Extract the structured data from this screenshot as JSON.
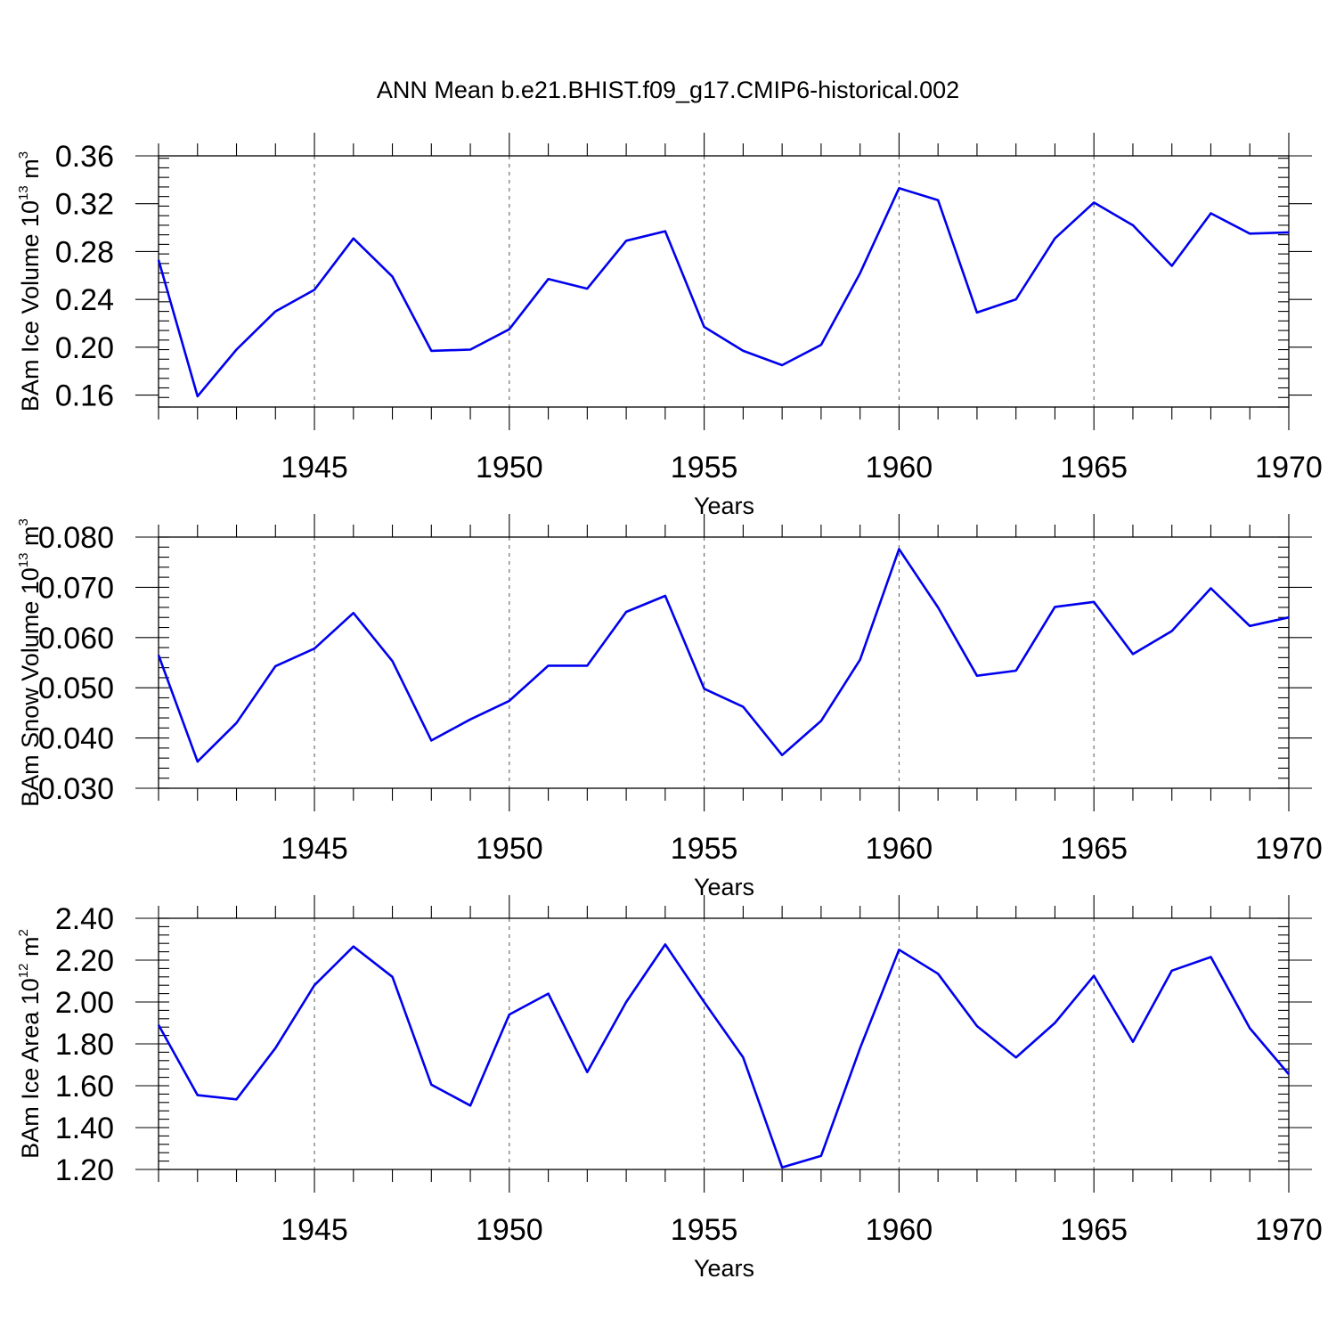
{
  "figure": {
    "title": "ANN Mean b.e21.BHIST.f09_g17.CMIP6-historical.002"
  },
  "chart_data": [
    {
      "type": "line",
      "ylabel": {
        "text": "BAm Ice Volume 10",
        "exponent": "13",
        "unit": " m",
        "unit_exponent": "3"
      },
      "xlabel": "Years",
      "xlim": [
        1941,
        1970
      ],
      "ylim": [
        0.15,
        0.36
      ],
      "xticks": [
        1945,
        1950,
        1955,
        1960,
        1965,
        1970
      ],
      "xtick_labels": [
        "1945",
        "1950",
        "1955",
        "1960",
        "1965",
        "1970"
      ],
      "yticks": [
        0.16,
        0.2,
        0.24,
        0.28,
        0.32,
        0.36
      ],
      "ytick_labels": [
        "0.16",
        "0.20",
        "0.24",
        "0.28",
        "0.32",
        "0.36"
      ],
      "y_minor_step": 0.008,
      "grid": "dashed vertical at major x ticks",
      "color": "#0000ee",
      "x": [
        1941,
        1942,
        1943,
        1944,
        1945,
        1946,
        1947,
        1948,
        1949,
        1950,
        1951,
        1952,
        1953,
        1954,
        1955,
        1956,
        1957,
        1958,
        1959,
        1960,
        1961,
        1962,
        1963,
        1964,
        1965,
        1966,
        1967,
        1968,
        1969,
        1970
      ],
      "values": [
        0.273,
        0.159,
        0.198,
        0.23,
        0.248,
        0.291,
        0.259,
        0.197,
        0.198,
        0.215,
        0.257,
        0.249,
        0.289,
        0.297,
        0.217,
        0.197,
        0.185,
        0.202,
        0.262,
        0.333,
        0.323,
        0.229,
        0.24,
        0.291,
        0.321,
        0.302,
        0.268,
        0.312,
        0.295,
        0.296
      ]
    },
    {
      "type": "line",
      "ylabel": {
        "text": "BAm Snow Volume 10",
        "exponent": "13",
        "unit": " m",
        "unit_exponent": "3"
      },
      "xlabel": "Years",
      "xlim": [
        1941,
        1970
      ],
      "ylim": [
        0.03,
        0.08
      ],
      "xticks": [
        1945,
        1950,
        1955,
        1960,
        1965,
        1970
      ],
      "xtick_labels": [
        "1945",
        "1950",
        "1955",
        "1960",
        "1965",
        "1970"
      ],
      "yticks": [
        0.03,
        0.04,
        0.05,
        0.06,
        0.07,
        0.08
      ],
      "ytick_labels": [
        "0.030",
        "0.040",
        "0.050",
        "0.060",
        "0.070",
        "0.080"
      ],
      "y_minor_step": 0.002,
      "grid": "dashed vertical at major x ticks",
      "color": "#0000ee",
      "x": [
        1941,
        1942,
        1943,
        1944,
        1945,
        1946,
        1947,
        1948,
        1949,
        1950,
        1951,
        1952,
        1953,
        1954,
        1955,
        1956,
        1957,
        1958,
        1959,
        1960,
        1961,
        1962,
        1963,
        1964,
        1965,
        1966,
        1967,
        1968,
        1969,
        1970
      ],
      "values": [
        0.0565,
        0.0353,
        0.043,
        0.0543,
        0.0578,
        0.0649,
        0.0553,
        0.0395,
        0.0437,
        0.0474,
        0.0544,
        0.0544,
        0.0651,
        0.0683,
        0.0498,
        0.0462,
        0.0366,
        0.0434,
        0.0556,
        0.0776,
        0.066,
        0.0524,
        0.0534,
        0.0661,
        0.0671,
        0.0567,
        0.0613,
        0.0698,
        0.0623,
        0.064
      ]
    },
    {
      "type": "line",
      "ylabel": {
        "text": "BAm Ice Area 10",
        "exponent": "12",
        "unit": " m",
        "unit_exponent": "2"
      },
      "xlabel": "Years",
      "xlim": [
        1941,
        1970
      ],
      "ylim": [
        1.2,
        2.4
      ],
      "xticks": [
        1945,
        1950,
        1955,
        1960,
        1965,
        1970
      ],
      "xtick_labels": [
        "1945",
        "1950",
        "1955",
        "1960",
        "1965",
        "1970"
      ],
      "yticks": [
        1.2,
        1.4,
        1.6,
        1.8,
        2.0,
        2.2,
        2.4
      ],
      "ytick_labels": [
        "1.20",
        "1.40",
        "1.60",
        "1.80",
        "2.00",
        "2.20",
        "2.40"
      ],
      "y_minor_step": 0.04,
      "grid": "dashed vertical at major x ticks",
      "color": "#0000ee",
      "x": [
        1941,
        1942,
        1943,
        1944,
        1945,
        1946,
        1947,
        1948,
        1949,
        1950,
        1951,
        1952,
        1953,
        1954,
        1955,
        1956,
        1957,
        1958,
        1959,
        1960,
        1961,
        1962,
        1963,
        1964,
        1965,
        1966,
        1967,
        1968,
        1969,
        1970
      ],
      "values": [
        1.89,
        1.555,
        1.535,
        1.78,
        2.08,
        2.265,
        2.12,
        1.605,
        1.505,
        1.94,
        2.04,
        1.665,
        2.0,
        2.275,
        2.0,
        1.735,
        1.21,
        1.265,
        1.78,
        2.25,
        2.135,
        1.885,
        1.735,
        1.9,
        2.125,
        1.81,
        2.15,
        2.215,
        1.875,
        1.655
      ]
    }
  ]
}
